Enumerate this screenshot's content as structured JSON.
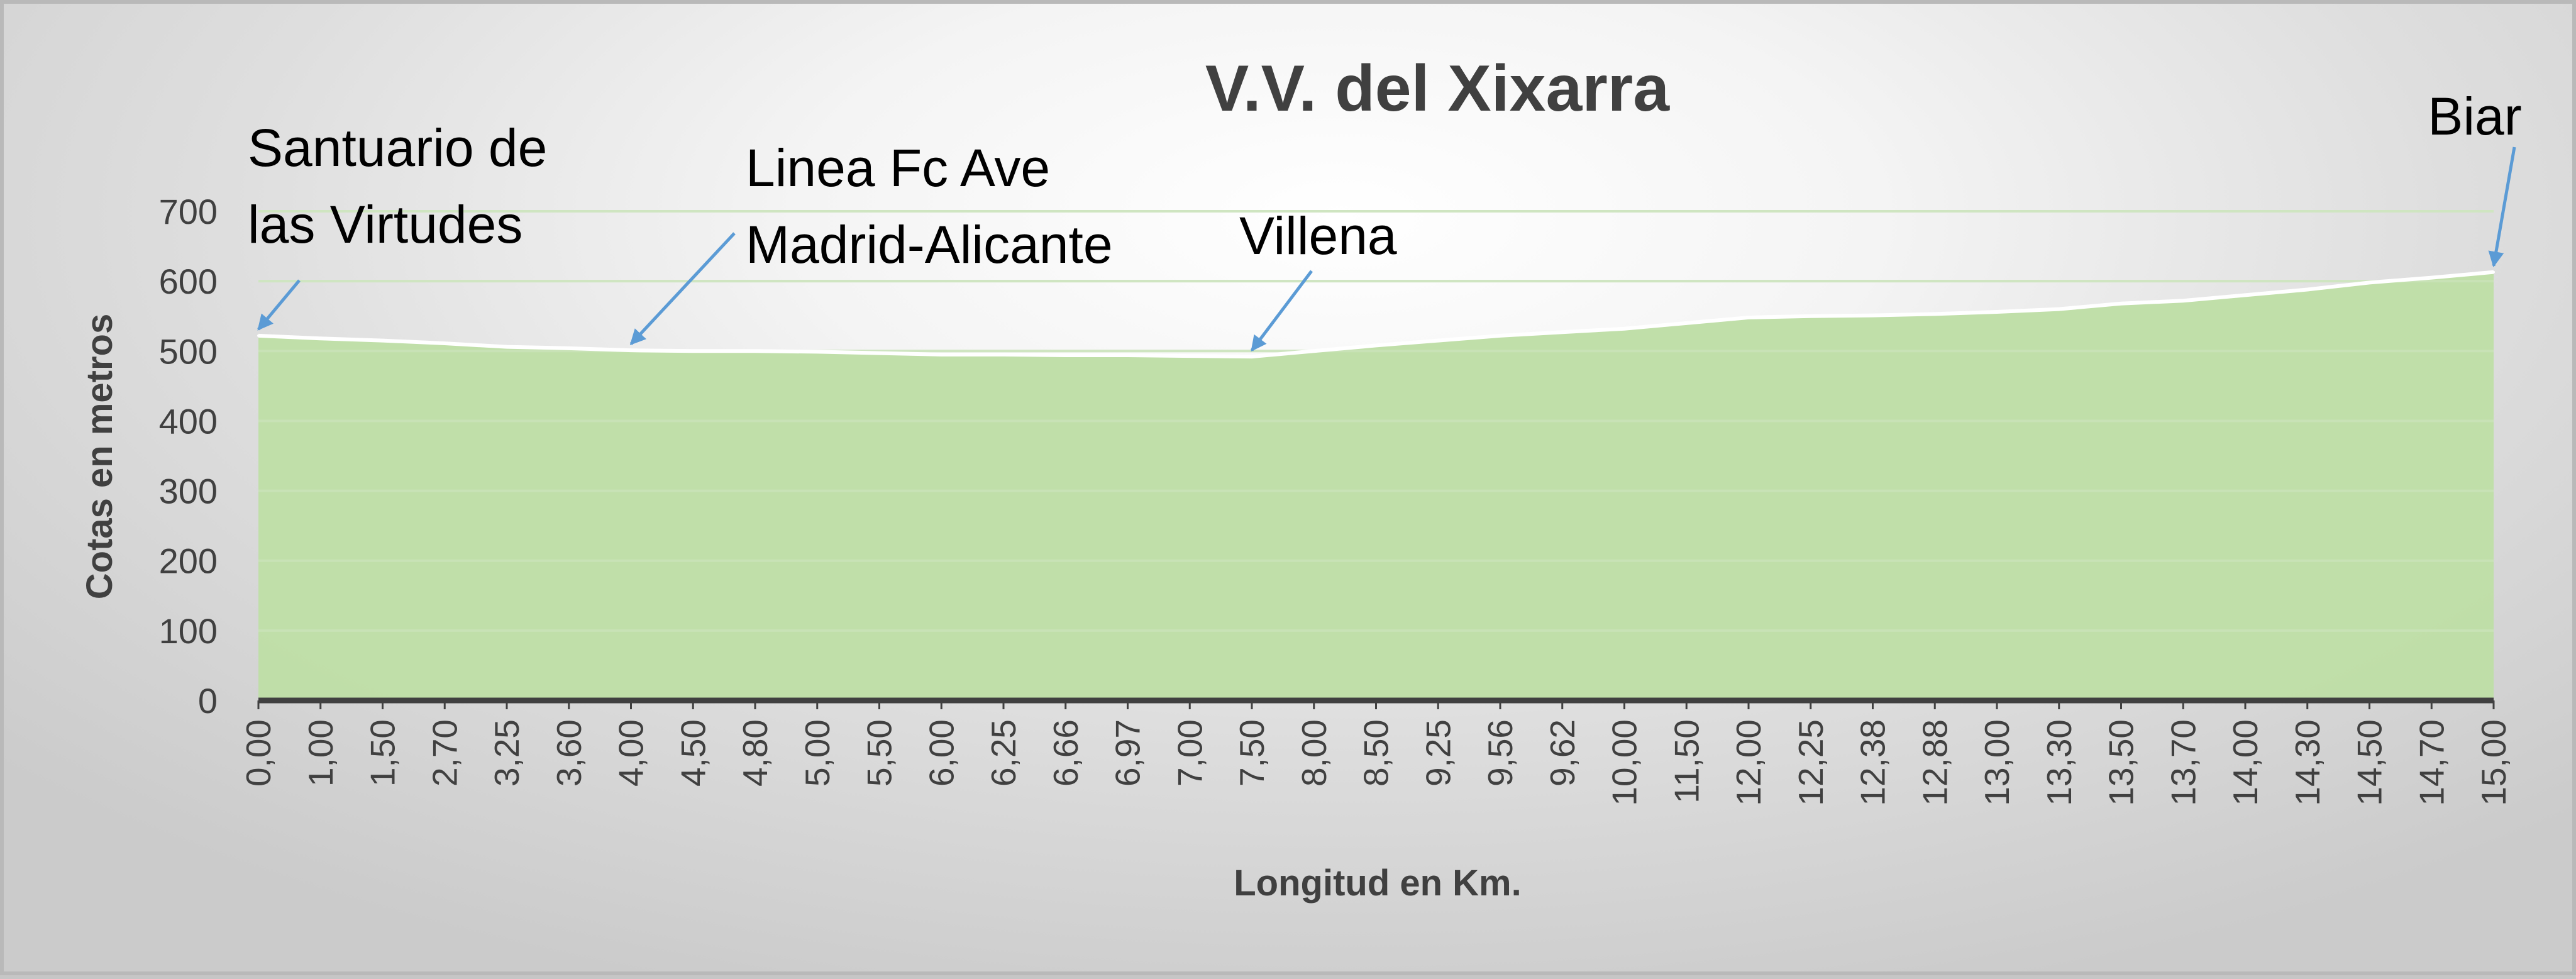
{
  "chart_data": {
    "type": "area",
    "title": "V.V. del Xixarra",
    "xlabel": "Longitud en Km.",
    "ylabel": "Cotas en metros",
    "ylim": [
      0,
      700
    ],
    "yticks": [
      "0",
      "100",
      "200",
      "300",
      "400",
      "500",
      "600",
      "700"
    ],
    "grid": true,
    "legend": "none",
    "categories": [
      "0,00",
      "1,00",
      "1,50",
      "2,70",
      "3,25",
      "3,60",
      "4,00",
      "4,50",
      "4,80",
      "5,00",
      "5,50",
      "6,00",
      "6,25",
      "6,66",
      "6,97",
      "7,00",
      "7,50",
      "8,00",
      "8,50",
      "9,25",
      "9,56",
      "9,62",
      "10,00",
      "11,50",
      "12,00",
      "12,25",
      "12,38",
      "12,88",
      "13,00",
      "13,30",
      "13,50",
      "13,70",
      "14,00",
      "14,30",
      "14,50",
      "14,70",
      "15,00"
    ],
    "series": [
      {
        "values": [
          522,
          518,
          515,
          511,
          506,
          504,
          501,
          500,
          500,
          499,
          497,
          495,
          495,
          494,
          494,
          493,
          492,
          500,
          508,
          515,
          522,
          527,
          532,
          540,
          548,
          550,
          551,
          553,
          556,
          560,
          568,
          572,
          580,
          588,
          598,
          605,
          613
        ]
      }
    ],
    "annotations": [
      {
        "lines": [
          "Santuario de",
          "las Virtudes"
        ],
        "index": 0
      },
      {
        "lines": [
          "Linea Fc Ave",
          "Madrid-Alicante"
        ],
        "index": 6
      },
      {
        "lines": [
          "Villena"
        ],
        "index": 16
      },
      {
        "lines": [
          "Biar"
        ],
        "index": 36
      }
    ],
    "colors": {
      "area_fill": "#bfdea7",
      "area_line": "#ffffff",
      "gridline": "#d0e6c3",
      "axis": "#404040",
      "arrow": "#5b9bd5"
    }
  }
}
